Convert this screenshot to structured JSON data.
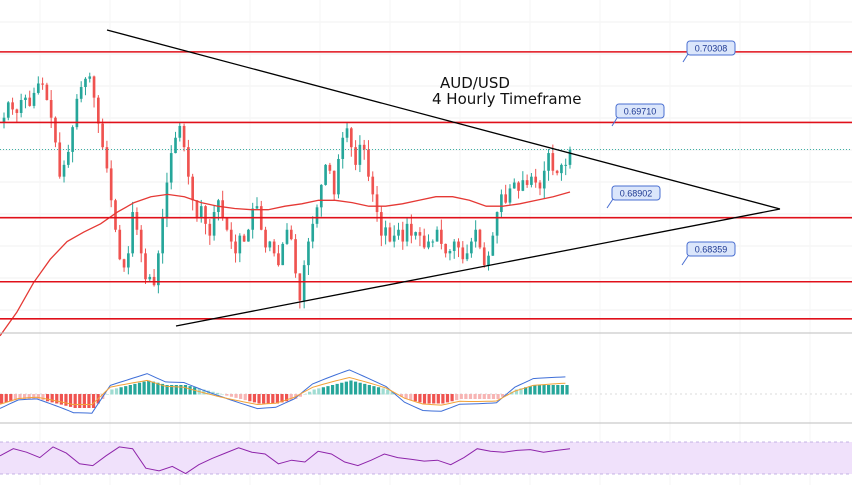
{
  "chart_data": {
    "type": "candlestick",
    "title_line1": "AUD/USD",
    "title_line2": "4 Hourly Timeframe",
    "levels": [
      0.70308,
      0.6971,
      0.68902,
      0.68359
    ],
    "level_labels": [
      "0.70308",
      "0.69710",
      "0.68902",
      "0.68359"
    ],
    "ylim": [
      0.6795,
      0.7068
    ],
    "closes": [
      0.6975,
      0.6988,
      0.6982,
      0.6979,
      0.699,
      0.6992,
      0.6985,
      0.6996,
      0.7004,
      0.7003,
      0.699,
      0.6975,
      0.6954,
      0.6925,
      0.6935,
      0.6946,
      0.6967,
      0.6991,
      0.7001,
      0.7008,
      0.701,
      0.6992,
      0.697,
      0.695,
      0.6932,
      0.6905,
      0.688,
      0.6855,
      0.6848,
      0.686,
      0.6895,
      0.688,
      0.686,
      0.6838,
      0.684,
      0.6833,
      0.686,
      0.689,
      0.692,
      0.6945,
      0.6958,
      0.6968,
      0.695,
      0.6925,
      0.6905,
      0.689,
      0.69,
      0.6885,
      0.6875,
      0.6895,
      0.6905,
      0.689,
      0.688,
      0.687,
      0.686,
      0.6875,
      0.687,
      0.688,
      0.6898,
      0.69,
      0.688,
      0.6865,
      0.687,
      0.686,
      0.685,
      0.6868,
      0.688,
      0.6872,
      0.6843,
      0.682,
      0.685,
      0.687,
      0.6885,
      0.6899,
      0.6918,
      0.6935,
      0.693,
      0.691,
      0.694,
      0.6958,
      0.6966,
      0.695,
      0.6935,
      0.6952,
      0.6948,
      0.6925,
      0.691,
      0.6895,
      0.6875,
      0.6882,
      0.687,
      0.6875,
      0.688,
      0.687,
      0.6885,
      0.6875,
      0.6878,
      0.6875,
      0.6865,
      0.687,
      0.687,
      0.688,
      0.6868,
      0.686,
      0.6862,
      0.687,
      0.6865,
      0.6855,
      0.686,
      0.687,
      0.688,
      0.6865,
      0.685,
      0.6858,
      0.6875,
      0.6895,
      0.691,
      0.6903,
      0.6915,
      0.692,
      0.6913,
      0.6922,
      0.6918,
      0.6925,
      0.692,
      0.6915,
      0.693,
      0.6945,
      0.693,
      0.6928,
      0.6935,
      0.6935,
      0.6948
    ],
    "sma": [
      0.679,
      0.681,
      0.6835,
      0.6855,
      0.687,
      0.6878,
      0.6885,
      0.6895,
      0.6903,
      0.6908,
      0.691,
      0.6908,
      0.6903,
      0.69,
      0.6898,
      0.6897,
      0.6897,
      0.69,
      0.6902,
      0.6905,
      0.6905,
      0.6903,
      0.69,
      0.69,
      0.6902,
      0.6905,
      0.6908,
      0.6908,
      0.6905,
      0.69,
      0.69,
      0.6902,
      0.6905,
      0.6908,
      0.6912
    ],
    "macd_hist": [
      -0.0002,
      -0.0001,
      -0.0001,
      -0.0002,
      -0.0003,
      -0.0003,
      0.0001,
      0.0002,
      0.0003,
      0.0002,
      0.0002,
      0.0001,
      0,
      -0.0001,
      -0.0002,
      -0.0002,
      -0.0001,
      0.0001,
      0.0002,
      0.0003,
      0.0002,
      0.0001,
      -0.0001,
      -0.0002,
      -0.0002,
      -0.0001,
      -0.0001,
      -0.0001,
      0.0001,
      0.0002,
      0.0002
    ],
    "rsi": [
      50,
      58,
      54,
      48,
      60,
      53,
      41,
      39,
      50,
      60,
      58,
      36,
      33,
      38,
      30,
      40,
      47,
      53,
      59,
      54,
      52,
      41,
      45,
      43,
      55,
      52,
      43,
      39,
      45,
      52,
      48,
      46,
      44,
      45,
      40,
      48,
      58,
      55,
      54,
      56,
      57,
      54,
      56,
      58
    ]
  }
}
